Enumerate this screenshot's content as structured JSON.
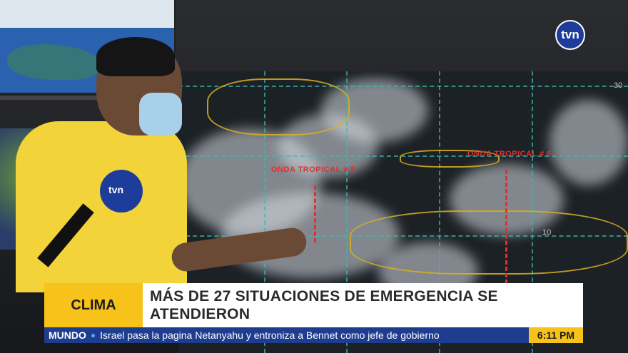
{
  "broadcast": {
    "channel_logo": "tvn",
    "mic_logo": "tvn"
  },
  "weather_map": {
    "wave_labels": [
      "ONDA TROPICAL # 5",
      "ONDA TROPICAL # 6"
    ],
    "latitude_labels": [
      "30",
      "10"
    ]
  },
  "lower_third": {
    "category": "CLIMA",
    "headline": "MÁS DE 27 SITUACIONES DE EMERGENCIA SE ATENDIERON",
    "colors": {
      "category_bg": "#f7c21a",
      "ticker_bg": "#1f3d8f"
    }
  },
  "ticker": {
    "section": "MUNDO",
    "text": "Israel pasa la pagina Netanyahu y entroniza a Bennet como jefe de gobierno",
    "time": "6:11 PM"
  }
}
